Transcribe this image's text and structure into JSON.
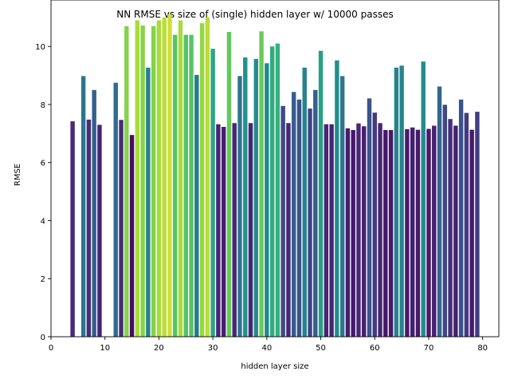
{
  "chart_data": {
    "type": "bar",
    "title": "NN RMSE vs size of (single) hidden layer w/ 10000 passes",
    "xlabel": "hidden layer size",
    "ylabel": "RMSE",
    "xlim": [
      0,
      83
    ],
    "ylim": [
      0,
      11.6
    ],
    "xticks": [
      0,
      10,
      20,
      30,
      40,
      50,
      60,
      70,
      80
    ],
    "yticks": [
      0,
      2,
      4,
      6,
      8,
      10
    ],
    "xtick_labels": [
      "0",
      "10",
      "20",
      "30",
      "40",
      "50",
      "60",
      "70",
      "80"
    ],
    "ytick_labels": [
      "0",
      "2",
      "4",
      "6",
      "8",
      "10"
    ],
    "grid": false,
    "colormap": "viridis (bar color by value)",
    "x": [
      4,
      6,
      7,
      8,
      9,
      12,
      13,
      14,
      15,
      16,
      17,
      18,
      19,
      20,
      21,
      22,
      23,
      24,
      25,
      26,
      27,
      28,
      29,
      30,
      31,
      32,
      33,
      34,
      35,
      36,
      37,
      38,
      39,
      40,
      41,
      42,
      43,
      44,
      45,
      46,
      47,
      48,
      49,
      50,
      51,
      52,
      53,
      54,
      55,
      56,
      57,
      58,
      59,
      60,
      61,
      62,
      63,
      64,
      65,
      66,
      67,
      68,
      69,
      70,
      71,
      72,
      73,
      74,
      75,
      76,
      77,
      78,
      79
    ],
    "values": [
      7.42,
      8.98,
      7.48,
      8.5,
      7.3,
      8.75,
      7.47,
      10.7,
      6.95,
      10.9,
      10.72,
      9.27,
      10.7,
      10.9,
      11.0,
      11.1,
      10.4,
      10.9,
      10.4,
      10.4,
      9.02,
      10.8,
      11.0,
      9.92,
      7.32,
      7.23,
      10.5,
      7.36,
      8.98,
      9.62,
      7.36,
      9.57,
      10.52,
      9.42,
      10.0,
      10.1,
      7.95,
      7.36,
      8.43,
      8.17,
      9.27,
      7.86,
      8.5,
      9.85,
      7.32,
      7.32,
      9.52,
      8.98,
      7.18,
      7.12,
      7.35,
      7.25,
      8.21,
      7.72,
      7.36,
      7.12,
      7.12,
      9.27,
      9.34,
      7.15,
      7.21,
      7.13,
      9.48,
      7.16,
      7.27,
      8.62,
      7.99,
      7.5,
      7.27,
      8.17,
      7.71,
      7.13,
      7.75
    ]
  }
}
